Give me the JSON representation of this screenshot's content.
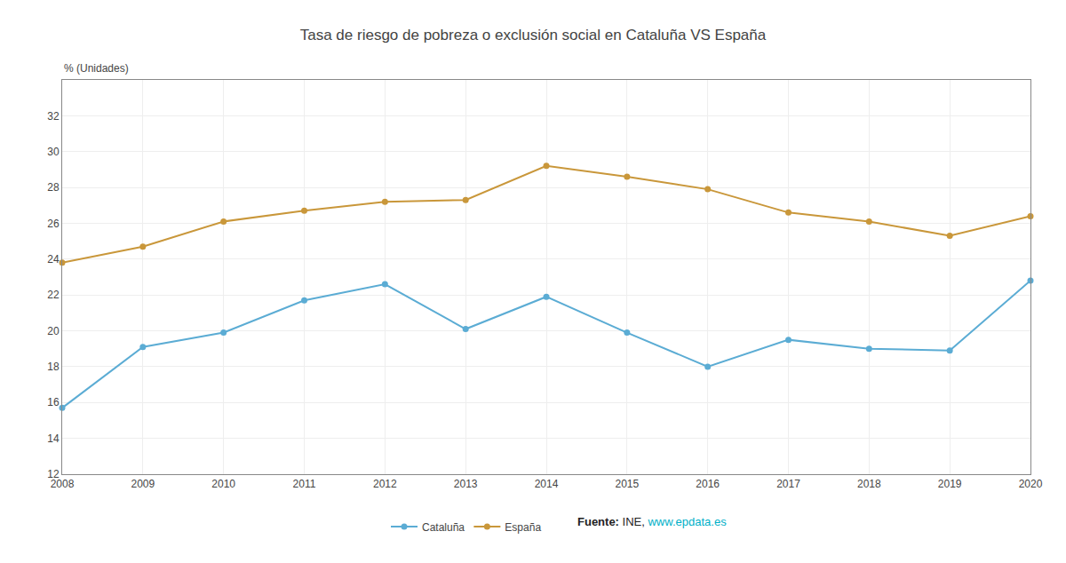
{
  "chart_data": {
    "type": "line",
    "title": "Tasa de riesgo de pobreza o exclusión social en Cataluña VS España",
    "ylabel": "% (Unidades)",
    "x": [
      2008,
      2009,
      2010,
      2011,
      2012,
      2013,
      2014,
      2015,
      2016,
      2017,
      2018,
      2019,
      2020
    ],
    "series": [
      {
        "name": "Cataluña",
        "color": "#5bacd4",
        "values": [
          15.7,
          19.1,
          19.9,
          21.7,
          22.6,
          20.1,
          21.9,
          19.9,
          18.0,
          19.5,
          19.0,
          18.9,
          22.8
        ]
      },
      {
        "name": "España",
        "color": "#c9973a",
        "values": [
          23.8,
          24.7,
          26.1,
          26.7,
          27.2,
          27.3,
          29.2,
          28.6,
          27.9,
          26.6,
          26.1,
          25.3,
          26.4
        ]
      }
    ],
    "xlim": [
      2008,
      2020
    ],
    "xticks": [
      2008,
      2009,
      2010,
      2011,
      2012,
      2013,
      2014,
      2015,
      2016,
      2017,
      2018,
      2019,
      2020
    ],
    "ylim": [
      12,
      34
    ],
    "yticks": [
      12,
      14,
      16,
      18,
      20,
      22,
      24,
      26,
      28,
      30,
      32
    ],
    "grid": true,
    "legend": "bottom",
    "marker": "circle",
    "line_style": "solid",
    "annotations": [
      {
        "text": "Fuente:"
      },
      {
        "text": " INE, "
      },
      {
        "text": "www.epdata.es",
        "color": "#00b0c8"
      }
    ]
  }
}
